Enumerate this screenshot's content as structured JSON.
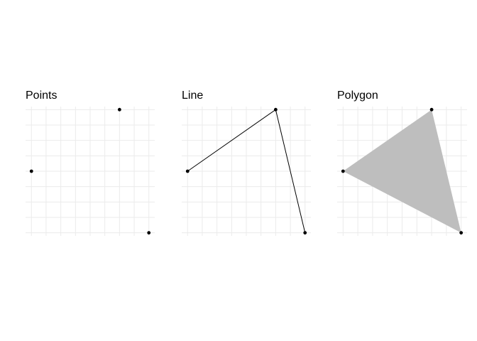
{
  "panels": [
    {
      "title": "Points",
      "geometry": "points",
      "vertices": [
        {
          "x": 0,
          "y": 0
        },
        {
          "x": 3,
          "y": 2
        },
        {
          "x": 4,
          "y": -2
        }
      ]
    },
    {
      "title": "Line",
      "geometry": "line",
      "vertices": [
        {
          "x": 0,
          "y": 0
        },
        {
          "x": 3,
          "y": 2
        },
        {
          "x": 4,
          "y": -2
        }
      ]
    },
    {
      "title": "Polygon",
      "geometry": "polygon",
      "vertices": [
        {
          "x": 0,
          "y": 0
        },
        {
          "x": 3,
          "y": 2
        },
        {
          "x": 4,
          "y": -2
        }
      ]
    }
  ],
  "colors": {
    "grid": "#ebebeb",
    "point": "#000000",
    "line": "#000000",
    "fill": "#bebebe"
  },
  "axes": {
    "xlim": [
      -0.2,
      4.2
    ],
    "ylim": [
      -2.1,
      2.1
    ],
    "grid": true
  }
}
